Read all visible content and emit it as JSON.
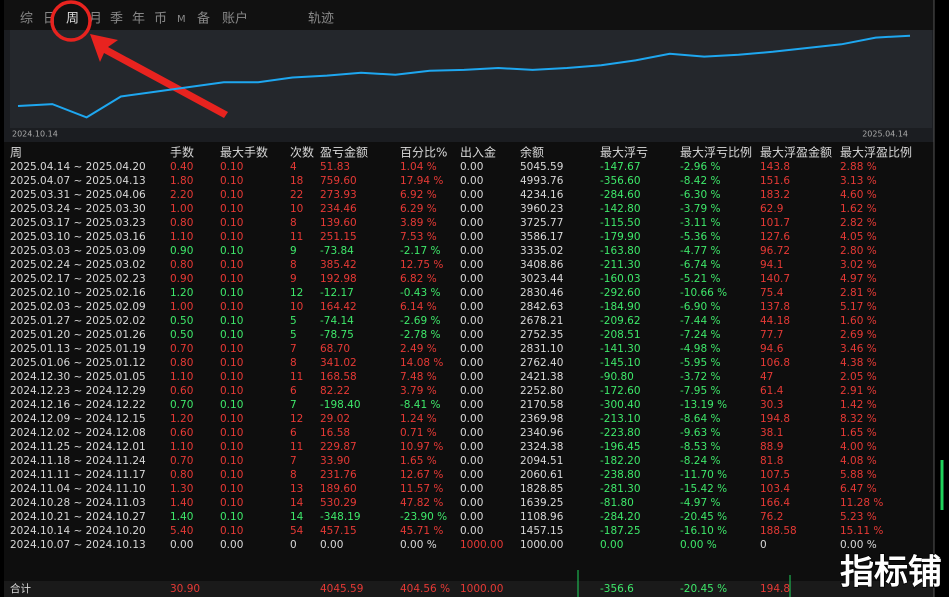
{
  "tabs": [
    "综",
    "日",
    "周",
    "月",
    "季",
    "年",
    "币",
    "M",
    "备",
    "账户",
    "轨迹"
  ],
  "equity_chart": {
    "type": "line",
    "color": "#1ea7f0",
    "x_labels": [
      "2024.10.14",
      "2025.04.14"
    ],
    "values": [
      20,
      22,
      8,
      30,
      35,
      40,
      45,
      45,
      50,
      52,
      55,
      53,
      57,
      58,
      60,
      58,
      60,
      63,
      68,
      75,
      72,
      74,
      77,
      81,
      85,
      92,
      94
    ],
    "ylim": [
      0,
      100
    ]
  },
  "table": {
    "columns": [
      "周",
      "手数",
      "最大手数",
      "次数",
      "盈亏金额",
      "百分比%",
      "出入金",
      "余额",
      "最大浮亏",
      "最大浮亏比例",
      "最大浮盈金额",
      "最大浮盈比例"
    ],
    "rows": [
      [
        "2025.04.14 ~ 2025.04.20",
        "0.40",
        "0.10",
        "4",
        "51.83",
        "1.04 %",
        "0.00",
        "5045.59",
        "-147.67",
        "-2.96 %",
        "143.8",
        "2.88 %"
      ],
      [
        "2025.04.07 ~ 2025.04.13",
        "1.80",
        "0.10",
        "18",
        "759.60",
        "17.94 %",
        "0.00",
        "4993.76",
        "-356.60",
        "-8.42 %",
        "151.6",
        "3.13 %"
      ],
      [
        "2025.03.31 ~ 2025.04.06",
        "2.20",
        "0.10",
        "22",
        "273.93",
        "6.92 %",
        "0.00",
        "4234.16",
        "-284.60",
        "-6.30 %",
        "183.2",
        "4.60 %"
      ],
      [
        "2025.03.24 ~ 2025.03.30",
        "1.00",
        "0.10",
        "10",
        "234.46",
        "6.29 %",
        "0.00",
        "3960.23",
        "-142.80",
        "-3.79 %",
        "62.9",
        "1.62 %"
      ],
      [
        "2025.03.17 ~ 2025.03.23",
        "0.80",
        "0.10",
        "8",
        "139.60",
        "3.89 %",
        "0.00",
        "3725.77",
        "-115.50",
        "-3.11 %",
        "101.7",
        "2.82 %"
      ],
      [
        "2025.03.10 ~ 2025.03.16",
        "1.10",
        "0.10",
        "11",
        "251.15",
        "7.53 %",
        "0.00",
        "3586.17",
        "-179.90",
        "-5.36 %",
        "127.6",
        "4.05 %"
      ],
      [
        "2025.03.03 ~ 2025.03.09",
        "0.90",
        "0.10",
        "9",
        "-73.84",
        "-2.17 %",
        "0.00",
        "3335.02",
        "-163.80",
        "-4.77 %",
        "96.72",
        "2.80 %"
      ],
      [
        "2025.02.24 ~ 2025.03.02",
        "0.80",
        "0.10",
        "8",
        "385.42",
        "12.75 %",
        "0.00",
        "3408.86",
        "-211.30",
        "-6.74 %",
        "94.1",
        "3.02 %"
      ],
      [
        "2025.02.17 ~ 2025.02.23",
        "0.90",
        "0.10",
        "9",
        "192.98",
        "6.82 %",
        "0.00",
        "3023.44",
        "-160.03",
        "-5.21 %",
        "140.7",
        "4.97 %"
      ],
      [
        "2025.02.10 ~ 2025.02.16",
        "1.20",
        "0.10",
        "12",
        "-12.17",
        "-0.43 %",
        "0.00",
        "2830.46",
        "-292.60",
        "-10.66 %",
        "75.4",
        "2.81 %"
      ],
      [
        "2025.02.03 ~ 2025.02.09",
        "1.00",
        "0.10",
        "10",
        "164.42",
        "6.14 %",
        "0.00",
        "2842.63",
        "-184.90",
        "-6.90 %",
        "137.8",
        "5.17 %"
      ],
      [
        "2025.01.27 ~ 2025.02.02",
        "0.50",
        "0.10",
        "5",
        "-74.14",
        "-2.69 %",
        "0.00",
        "2678.21",
        "-209.62",
        "-7.44 %",
        "44.18",
        "1.60 %"
      ],
      [
        "2025.01.20 ~ 2025.01.26",
        "0.50",
        "0.10",
        "5",
        "-78.75",
        "-2.78 %",
        "0.00",
        "2752.35",
        "-208.51",
        "-7.24 %",
        "77.7",
        "2.69 %"
      ],
      [
        "2025.01.13 ~ 2025.01.19",
        "0.70",
        "0.10",
        "7",
        "68.70",
        "2.49 %",
        "0.00",
        "2831.10",
        "-141.30",
        "-4.98 %",
        "94.6",
        "3.46 %"
      ],
      [
        "2025.01.06 ~ 2025.01.12",
        "0.80",
        "0.10",
        "8",
        "341.02",
        "14.08 %",
        "0.00",
        "2762.40",
        "-145.10",
        "-5.95 %",
        "106.8",
        "4.38 %"
      ],
      [
        "2024.12.30 ~ 2025.01.05",
        "1.10",
        "0.10",
        "11",
        "168.58",
        "7.48 %",
        "0.00",
        "2421.38",
        "-90.80",
        "-3.72 %",
        "47",
        "2.05 %"
      ],
      [
        "2024.12.23 ~ 2024.12.29",
        "0.60",
        "0.10",
        "6",
        "82.22",
        "3.79 %",
        "0.00",
        "2252.80",
        "-172.60",
        "-7.95 %",
        "61.4",
        "2.91 %"
      ],
      [
        "2024.12.16 ~ 2024.12.22",
        "0.70",
        "0.10",
        "7",
        "-198.40",
        "-8.41 %",
        "0.00",
        "2170.58",
        "-300.40",
        "-13.19 %",
        "30.3",
        "1.42 %"
      ],
      [
        "2024.12.09 ~ 2024.12.15",
        "1.20",
        "0.10",
        "12",
        "29.02",
        "1.24 %",
        "0.00",
        "2369.98",
        "-213.10",
        "-8.64 %",
        "194.8",
        "8.32 %"
      ],
      [
        "2024.12.02 ~ 2024.12.08",
        "0.60",
        "0.10",
        "6",
        "16.58",
        "0.71 %",
        "0.00",
        "2340.96",
        "-223.80",
        "-9.63 %",
        "38.1",
        "1.65 %"
      ],
      [
        "2024.11.25 ~ 2024.12.01",
        "1.10",
        "0.10",
        "11",
        "229.87",
        "10.97 %",
        "0.00",
        "2324.38",
        "-196.45",
        "-8.53 %",
        "88.9",
        "4.00 %"
      ],
      [
        "2024.11.18 ~ 2024.11.24",
        "0.70",
        "0.10",
        "7",
        "33.90",
        "1.65 %",
        "0.00",
        "2094.51",
        "-182.20",
        "-8.24 %",
        "81.8",
        "4.08 %"
      ],
      [
        "2024.11.11 ~ 2024.11.17",
        "0.80",
        "0.10",
        "8",
        "231.76",
        "12.67 %",
        "0.00",
        "2060.61",
        "-238.80",
        "-11.70 %",
        "107.5",
        "5.88 %"
      ],
      [
        "2024.11.04 ~ 2024.11.10",
        "1.30",
        "0.10",
        "13",
        "189.60",
        "11.57 %",
        "0.00",
        "1828.85",
        "-281.30",
        "-15.42 %",
        "103.4",
        "6.47 %"
      ],
      [
        "2024.10.28 ~ 2024.11.03",
        "1.40",
        "0.10",
        "14",
        "530.29",
        "47.82 %",
        "0.00",
        "1639.25",
        "-81.80",
        "-4.97 %",
        "166.4",
        "11.28 %"
      ],
      [
        "2024.10.21 ~ 2024.10.27",
        "1.40",
        "0.10",
        "14",
        "-348.19",
        "-23.90 %",
        "0.00",
        "1108.96",
        "-284.20",
        "-20.45 %",
        "76.2",
        "5.23 %"
      ],
      [
        "2024.10.14 ~ 2024.10.20",
        "5.40",
        "0.10",
        "54",
        "457.15",
        "45.71 %",
        "0.00",
        "1457.15",
        "-187.25",
        "-16.10 %",
        "188.58",
        "15.11 %"
      ],
      [
        "2024.10.07 ~ 2024.10.13",
        "0.00",
        "0.00",
        "0",
        "0.00",
        "0.00 %",
        "1000.00",
        "1000.00",
        "0.00",
        "0.00 %",
        "0",
        "0.00 %"
      ]
    ],
    "total": [
      "合计",
      "30.90",
      null,
      null,
      "4045.59",
      "404.56 %",
      "1000.00",
      null,
      "-356.6",
      "-20.45 %",
      "194.8",
      null
    ]
  },
  "watermark": "指标铺"
}
